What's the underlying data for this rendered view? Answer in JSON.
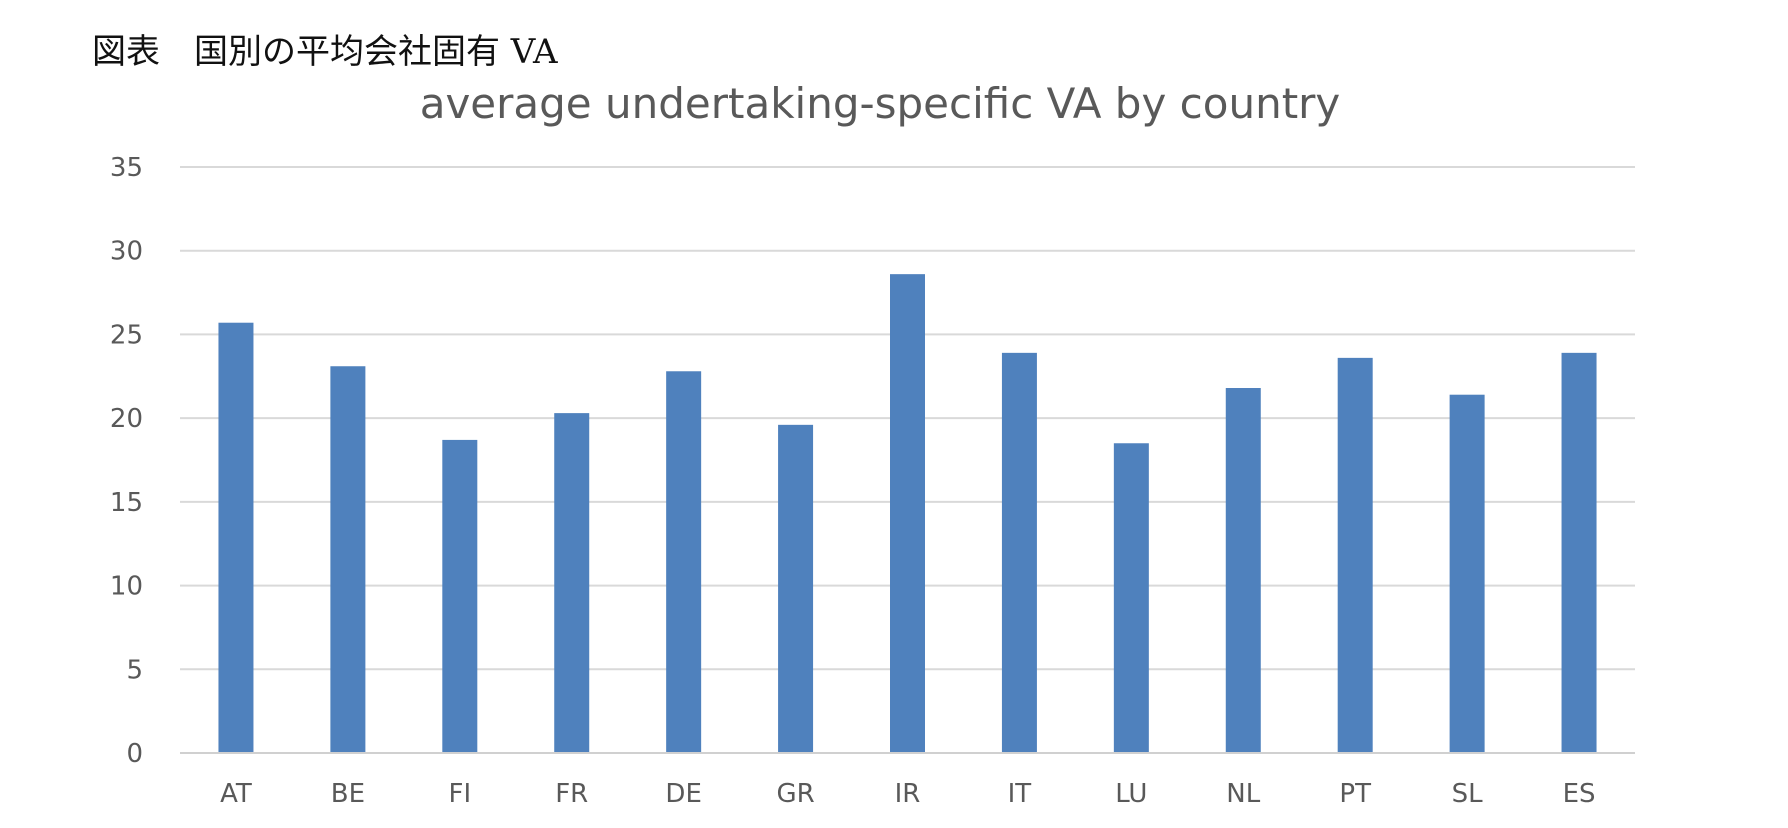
{
  "caption": "図表　国別の平均会社固有 VA",
  "chart_data": {
    "type": "bar",
    "title": "average undertaking-specific VA by country",
    "xlabel": "",
    "ylabel": "",
    "categories": [
      "AT",
      "BE",
      "FI",
      "FR",
      "DE",
      "GR",
      "IR",
      "IT",
      "LU",
      "NL",
      "PT",
      "SL",
      "ES"
    ],
    "series": [
      {
        "values": [
          25.7,
          23.1,
          18.7,
          20.3,
          22.8,
          19.6,
          28.6,
          23.9,
          18.5,
          21.8,
          23.6,
          21.4,
          23.9
        ]
      }
    ],
    "ylim": [
      0,
      35
    ],
    "yticks": [
      "0",
      "5",
      "10",
      "15",
      "20",
      "25",
      "30",
      "35"
    ],
    "ytick_values": [
      0,
      5,
      10,
      15,
      20,
      25,
      30,
      35
    ],
    "grid": true,
    "legend": "none",
    "bar_color": "#4f81bd"
  }
}
